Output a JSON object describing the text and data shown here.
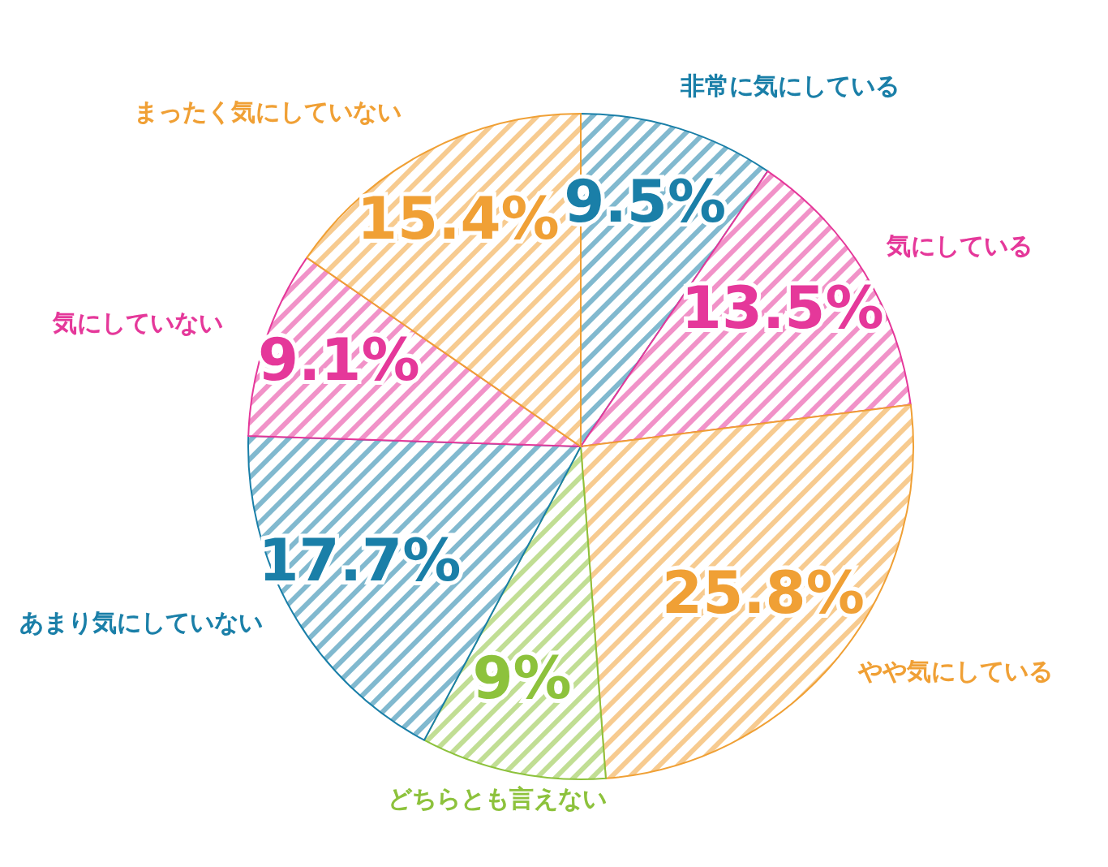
{
  "chart_data": {
    "type": "pie",
    "categories": [
      "非常に気にしている",
      "気にしている",
      "やや気にしている",
      "どちらとも言えない",
      "あまり気にしていない",
      "気にしていない",
      "まったく気にしていない"
    ],
    "values": [
      9.5,
      13.5,
      25.8,
      9,
      17.7,
      9.1,
      15.4
    ],
    "colors": [
      "#1a7fa8",
      "#e5389a",
      "#f0a035",
      "#8dc23c",
      "#1a7fa8",
      "#e5389a",
      "#f0a035"
    ],
    "value_labels": [
      "9.5%",
      "13.5%",
      "25.8%",
      "9%",
      "17.7%",
      "9.1%",
      "15.4%"
    ]
  }
}
